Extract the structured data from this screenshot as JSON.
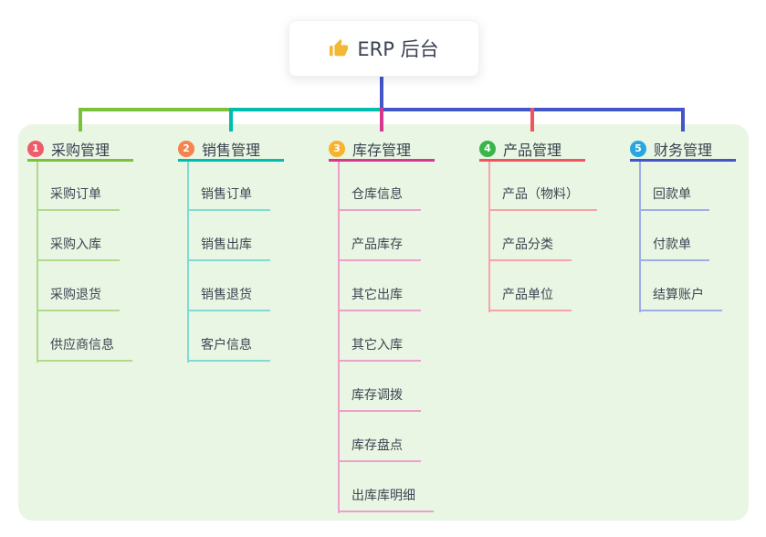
{
  "root": {
    "icon": "thumbs-up",
    "label": "ERP 后台",
    "line_color": "#4355c9"
  },
  "branches": [
    {
      "badge": "1",
      "label": "采购管理",
      "badge_color": "#ee5b69",
      "line_color": "#7cc03c",
      "child_line_color": "#b1d98c",
      "children": [
        "采购订单",
        "采购入库",
        "采购退货",
        "供应商信息"
      ]
    },
    {
      "badge": "2",
      "label": "销售管理",
      "badge_color": "#f6824c",
      "line_color": "#00bdae",
      "child_line_color": "#80dcd2",
      "children": [
        "销售订单",
        "销售出库",
        "销售退货",
        "客户信息"
      ]
    },
    {
      "badge": "3",
      "label": "库存管理",
      "badge_color": "#f7b32e",
      "line_color": "#d6378f",
      "child_line_color": "#efa0ca",
      "children": [
        "仓库信息",
        "产品库存",
        "其它出库",
        "其它入库",
        "库存调拨",
        "库存盘点",
        "出库库明细"
      ]
    },
    {
      "badge": "4",
      "label": "产品管理",
      "badge_color": "#3bb54a",
      "line_color": "#f2545e",
      "child_line_color": "#f8a3a8",
      "children": [
        "产品（物料）",
        "产品分类",
        "产品单位"
      ]
    },
    {
      "badge": "5",
      "label": "财务管理",
      "badge_color": "#29a6df",
      "line_color": "#4355c9",
      "child_line_color": "#9dade6",
      "children": [
        "回款单",
        "付款单",
        "结算账户"
      ]
    }
  ],
  "colors": {
    "panel_bg": "#e8f6e3",
    "text": "#3e4553",
    "root_text": "#3b4252",
    "icon_fill": "#f2b734"
  }
}
